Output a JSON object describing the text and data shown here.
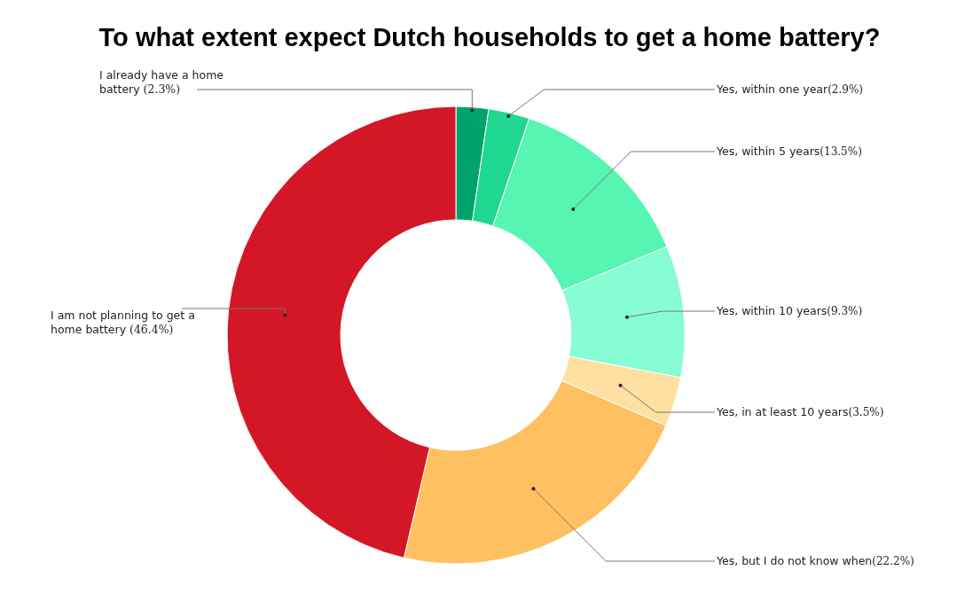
{
  "chart_data": {
    "type": "donut",
    "title": "To what extent expect Dutch households to get a home battery?",
    "categories": [
      "I already have a home battery",
      "Yes, within one year",
      "Yes, within 5 years",
      "Yes, within 10 years",
      "Yes, in at least 10 years",
      "Yes, but I do not know when",
      "I am not planning to get a home battery"
    ],
    "values": [
      2.3,
      2.9,
      13.5,
      9.3,
      3.5,
      22.2,
      46.4
    ],
    "value_labels": [
      "(2.3%)",
      "(2.9%)",
      "(13.5%)",
      "(9.3%)",
      "(3.5%)",
      "(22.2%)",
      "(46.4%)"
    ],
    "colors": [
      "#00a36c",
      "#1fd791",
      "#56f5b2",
      "#86fdd2",
      "#ffe0a0",
      "#ffc062",
      "#d41727"
    ]
  }
}
